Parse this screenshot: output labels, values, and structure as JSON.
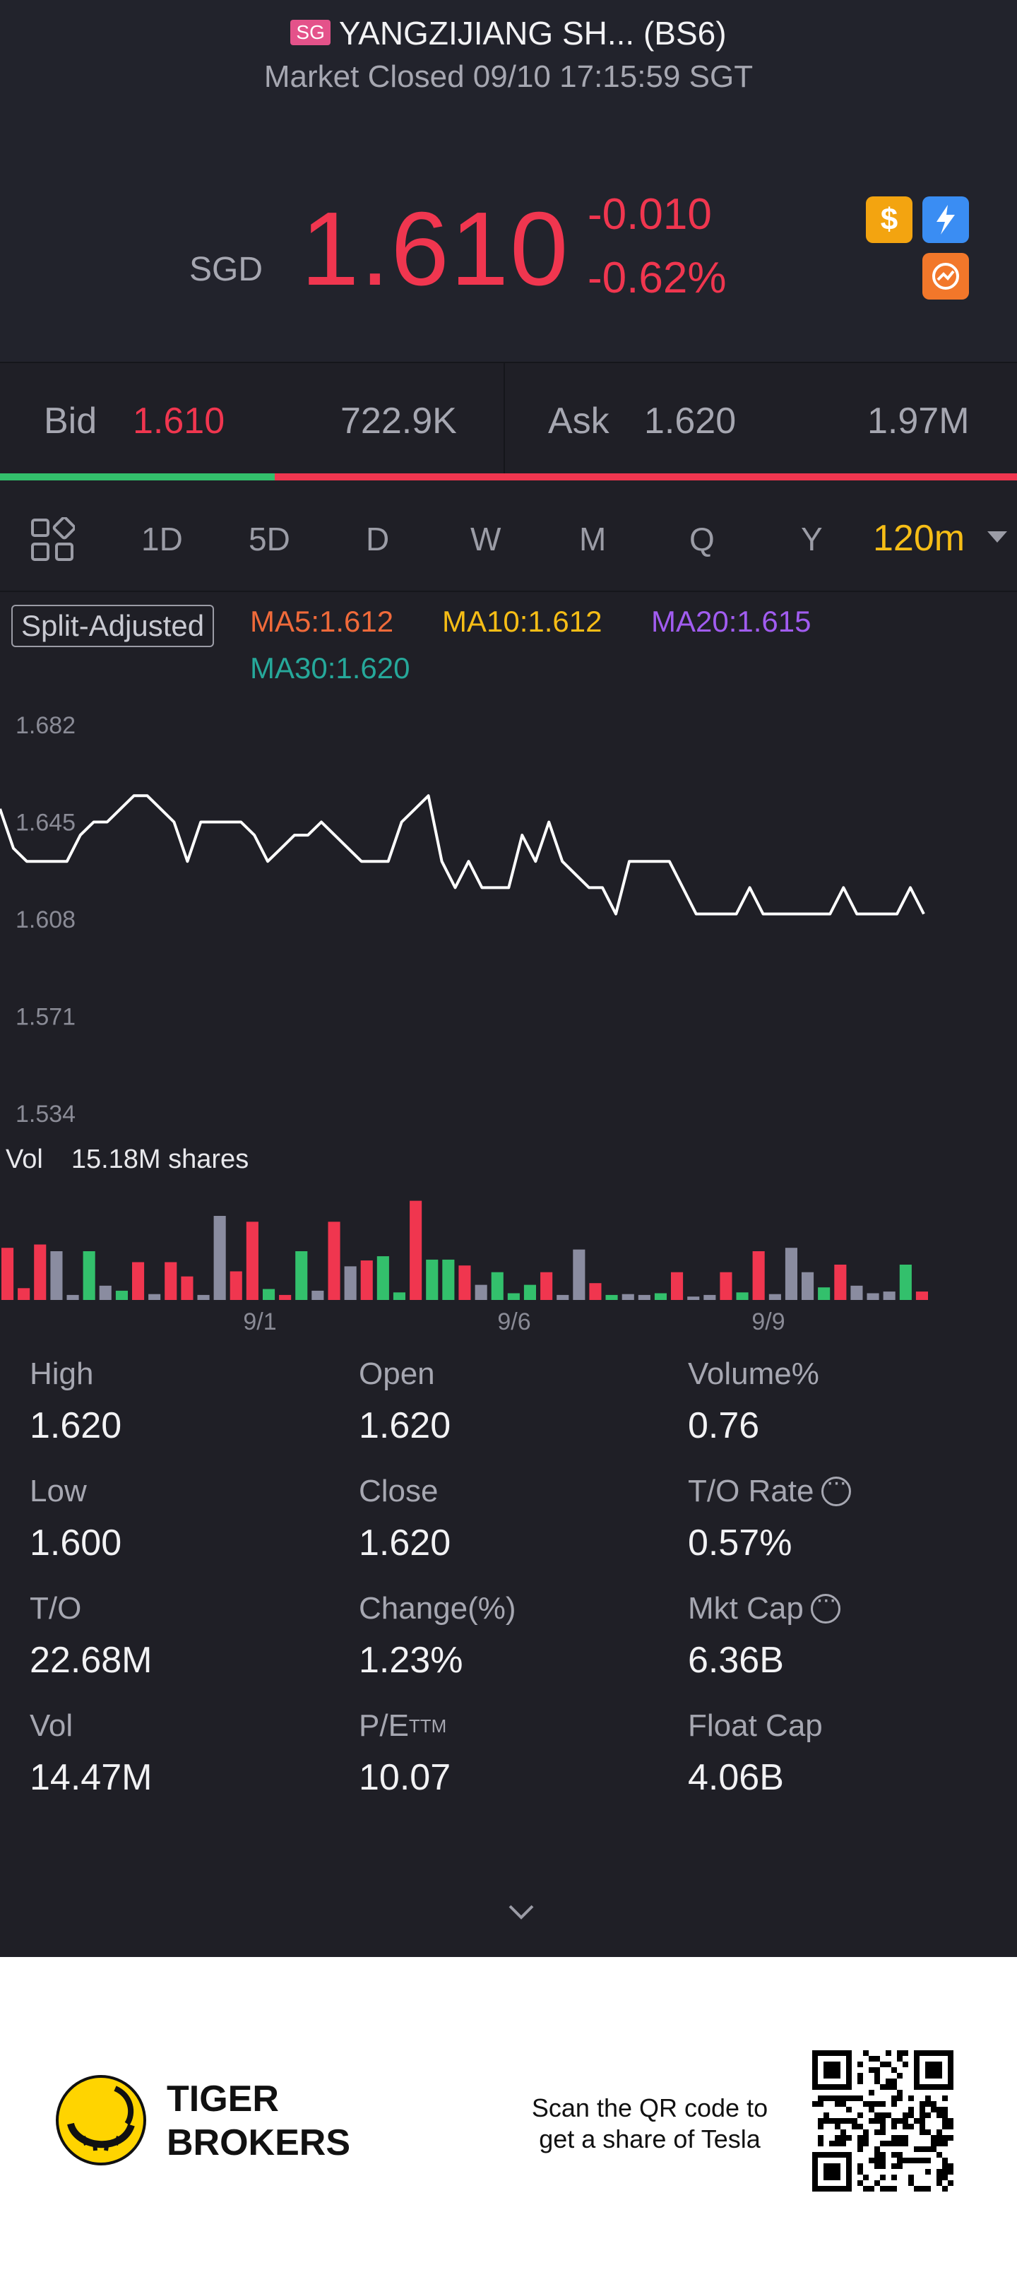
{
  "header": {
    "market_badge": "SG",
    "title": "YANGZIJIANG SH... (BS6)",
    "status": "Market Closed 09/10 17:15:59 SGT",
    "currency": "SGD",
    "price": "1.610",
    "change": "-0.010",
    "change_pct": "-0.62%",
    "icons": [
      "dollar-icon",
      "flash-icon",
      "trend-icon"
    ]
  },
  "bidask": {
    "bid_label": "Bid",
    "bid_price": "1.610",
    "bid_volume": "722.9K",
    "ask_label": "Ask",
    "ask_price": "1.620",
    "ask_volume": "1.97M",
    "bid_ratio": 0.27
  },
  "tabs": {
    "items": [
      "1D",
      "5D",
      "D",
      "W",
      "M",
      "Q",
      "Y"
    ],
    "active": "120m"
  },
  "chart": {
    "split_label": "Split-Adjusted",
    "ma5": "MA5:1.612",
    "ma10": "MA10:1.612",
    "ma20": "MA20:1.615",
    "ma30": "MA30:1.620",
    "volume_label": "Vol",
    "volume_value": "15.18M shares"
  },
  "chart_data": {
    "type": "line",
    "title": "",
    "xlabel": "",
    "ylabel": "",
    "ylim": [
      1.534,
      1.682
    ],
    "y_ticks": [
      "1.682",
      "1.645",
      "1.608",
      "1.571",
      "1.534"
    ],
    "x_ticks": [
      "9/1",
      "9/6",
      "9/9"
    ],
    "series": [
      {
        "values": [
          1.65,
          1.635,
          1.63,
          1.63,
          1.63,
          1.63,
          1.64,
          1.645,
          1.645,
          1.65,
          1.655,
          1.655,
          1.65,
          1.645,
          1.63,
          1.645,
          1.645,
          1.645,
          1.645,
          1.64,
          1.63,
          1.635,
          1.64,
          1.64,
          1.645,
          1.64,
          1.635,
          1.63,
          1.63,
          1.63,
          1.645,
          1.65,
          1.655,
          1.63,
          1.62,
          1.63,
          1.62,
          1.62,
          1.62,
          1.64,
          1.63,
          1.645,
          1.63,
          1.625,
          1.62,
          1.62,
          1.61,
          1.63,
          1.63,
          1.63,
          1.63,
          1.62,
          1.61,
          1.61,
          1.61,
          1.61,
          1.62,
          1.61,
          1.61,
          1.61,
          1.61,
          1.61,
          1.61,
          1.62,
          1.61,
          1.61,
          1.61,
          1.61,
          1.62,
          1.61
        ]
      }
    ],
    "volume": [
      {
        "v": 0.62,
        "c": "red"
      },
      {
        "v": 0.14,
        "c": "red"
      },
      {
        "v": 0.66,
        "c": "red"
      },
      {
        "v": 0.58,
        "c": "gray"
      },
      {
        "v": 0.06,
        "c": "gray"
      },
      {
        "v": 0.58,
        "c": "green"
      },
      {
        "v": 0.17,
        "c": "gray"
      },
      {
        "v": 0.11,
        "c": "green"
      },
      {
        "v": 0.45,
        "c": "red"
      },
      {
        "v": 0.07,
        "c": "gray"
      },
      {
        "v": 0.45,
        "c": "red"
      },
      {
        "v": 0.28,
        "c": "red"
      },
      {
        "v": 0.06,
        "c": "gray"
      },
      {
        "v": 1.0,
        "c": "gray"
      },
      {
        "v": 0.34,
        "c": "red"
      },
      {
        "v": 0.93,
        "c": "red"
      },
      {
        "v": 0.13,
        "c": "green"
      },
      {
        "v": 0.06,
        "c": "red"
      },
      {
        "v": 0.58,
        "c": "green"
      },
      {
        "v": 0.11,
        "c": "gray"
      },
      {
        "v": 0.93,
        "c": "red"
      },
      {
        "v": 0.4,
        "c": "gray"
      },
      {
        "v": 0.47,
        "c": "red"
      },
      {
        "v": 0.52,
        "c": "green"
      },
      {
        "v": 0.09,
        "c": "green"
      },
      {
        "v": 1.18,
        "c": "red"
      },
      {
        "v": 0.48,
        "c": "green"
      },
      {
        "v": 0.48,
        "c": "green"
      },
      {
        "v": 0.41,
        "c": "red"
      },
      {
        "v": 0.18,
        "c": "gray"
      },
      {
        "v": 0.33,
        "c": "green"
      },
      {
        "v": 0.08,
        "c": "green"
      },
      {
        "v": 0.18,
        "c": "green"
      },
      {
        "v": 0.33,
        "c": "red"
      },
      {
        "v": 0.06,
        "c": "gray"
      },
      {
        "v": 0.6,
        "c": "gray"
      },
      {
        "v": 0.2,
        "c": "red"
      },
      {
        "v": 0.06,
        "c": "green"
      },
      {
        "v": 0.07,
        "c": "gray"
      },
      {
        "v": 0.06,
        "c": "gray"
      },
      {
        "v": 0.08,
        "c": "green"
      },
      {
        "v": 0.33,
        "c": "red"
      },
      {
        "v": 0.04,
        "c": "gray"
      },
      {
        "v": 0.06,
        "c": "gray"
      },
      {
        "v": 0.33,
        "c": "red"
      },
      {
        "v": 0.09,
        "c": "green"
      },
      {
        "v": 0.58,
        "c": "red"
      },
      {
        "v": 0.07,
        "c": "gray"
      },
      {
        "v": 0.62,
        "c": "gray"
      },
      {
        "v": 0.33,
        "c": "gray"
      },
      {
        "v": 0.15,
        "c": "green"
      },
      {
        "v": 0.42,
        "c": "red"
      },
      {
        "v": 0.17,
        "c": "gray"
      },
      {
        "v": 0.08,
        "c": "gray"
      },
      {
        "v": 0.1,
        "c": "gray"
      },
      {
        "v": 0.42,
        "c": "green"
      },
      {
        "v": 0.1,
        "c": "red"
      }
    ]
  },
  "stats": [
    {
      "label": "High",
      "value": "1.620"
    },
    {
      "label": "Open",
      "value": "1.620"
    },
    {
      "label": "Volume%",
      "value": "0.76"
    },
    {
      "label": "Low",
      "value": "1.600"
    },
    {
      "label": "Close",
      "value": "1.620"
    },
    {
      "label": "T/O Rate",
      "value": "0.57%"
    },
    {
      "label": "T/O",
      "value": "22.68M"
    },
    {
      "label": "Change(%)",
      "value": "1.23%"
    },
    {
      "label": "Mkt Cap",
      "value": "6.36B"
    },
    {
      "label": "Vol",
      "value": "14.47M"
    },
    {
      "label": "P/E",
      "value": "10.07",
      "sup": "TTM"
    },
    {
      "label": "Float Cap",
      "value": "4.06B"
    }
  ],
  "footer": {
    "brand_line1": "TIGER",
    "brand_line2": "BROKERS",
    "scan_line1": "Scan the QR code to",
    "scan_line2": "get a share of Tesla"
  },
  "colors": {
    "up": "#f0364f",
    "down": "#33c06c",
    "neutral": "#8a8ca0",
    "accent": "#f6bd16"
  }
}
